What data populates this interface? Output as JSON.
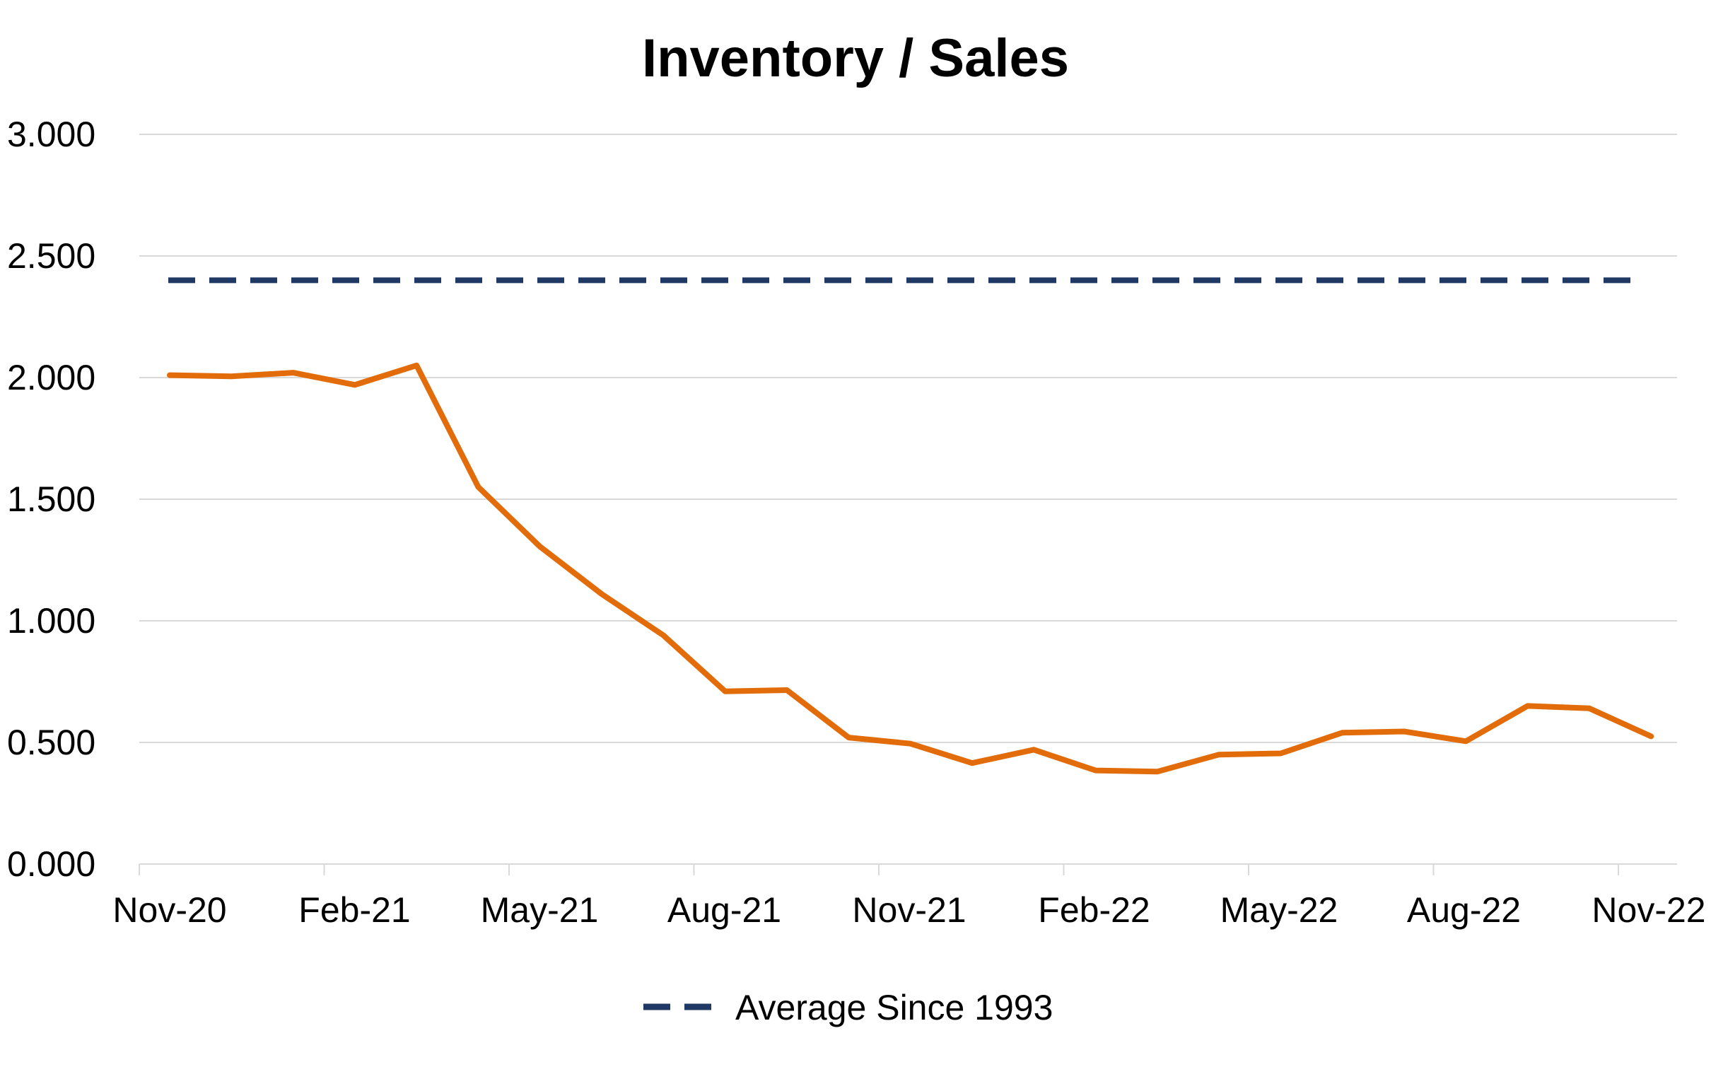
{
  "chart_data": {
    "type": "line",
    "title": "Inventory / Sales",
    "xlabel": "",
    "ylabel": "",
    "x_tick_labels": [
      "Nov-20",
      "Feb-21",
      "May-21",
      "Aug-21",
      "Nov-21",
      "Feb-22",
      "May-22",
      "Aug-22",
      "Nov-22"
    ],
    "y_tick_labels": [
      "0.000",
      "0.500",
      "1.000",
      "1.500",
      "2.000",
      "2.500",
      "3.000"
    ],
    "ylim": [
      0,
      3
    ],
    "grid": "horizontal",
    "legend_position": "bottom",
    "x": [
      "Nov-20",
      "Dec-20",
      "Jan-21",
      "Feb-21",
      "Mar-21",
      "Apr-21",
      "May-21",
      "Jun-21",
      "Jul-21",
      "Aug-21",
      "Sep-21",
      "Oct-21",
      "Nov-21",
      "Dec-21",
      "Jan-22",
      "Feb-22",
      "Mar-22",
      "Apr-22",
      "May-22",
      "Jun-22",
      "Jul-22",
      "Aug-22",
      "Sep-22",
      "Oct-22",
      "Nov-22"
    ],
    "series": [
      {
        "color": "#E36C0A",
        "style": "solid",
        "values": [
          2.01,
          2.005,
          2.02,
          1.97,
          2.05,
          1.55,
          1.305,
          1.11,
          0.94,
          0.71,
          0.715,
          0.52,
          0.495,
          0.415,
          0.47,
          0.385,
          0.38,
          0.45,
          0.455,
          0.54,
          0.545,
          0.505,
          0.65,
          0.64,
          0.525
        ]
      },
      {
        "name": "Average Since 1993",
        "color": "#1F3864",
        "style": "dashed",
        "values": [
          2.4,
          2.4,
          2.4,
          2.4,
          2.4,
          2.4,
          2.4,
          2.4,
          2.4,
          2.4,
          2.4,
          2.4,
          2.4,
          2.4,
          2.4,
          2.4,
          2.4,
          2.4,
          2.4,
          2.4,
          2.4,
          2.4,
          2.4,
          2.4,
          2.4
        ]
      }
    ],
    "legend": [
      "Average Since 1993"
    ]
  }
}
